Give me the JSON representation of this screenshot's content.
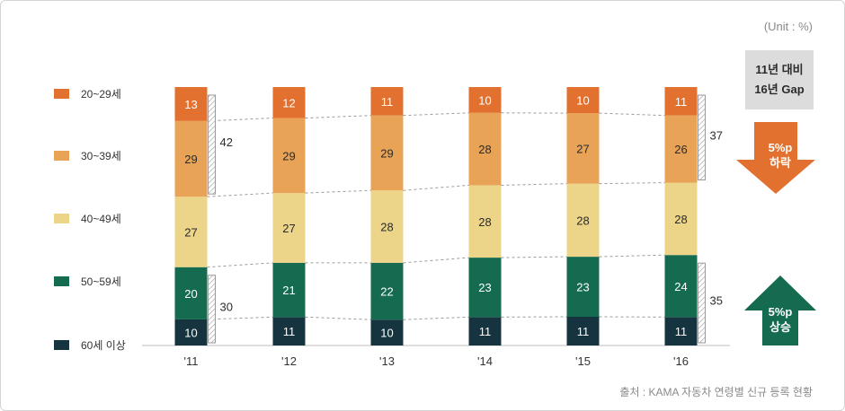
{
  "unit_label": "(Unit : %)",
  "source_label": "출처 : KAMA 자동차 연령별 신규 등록 현황",
  "gap_box": {
    "line1": "11년 대비",
    "line2": "16년 Gap"
  },
  "down_arrow": {
    "line1": "5%p",
    "line2": "하락",
    "color": "#e2712f"
  },
  "up_arrow": {
    "line1": "5%p",
    "line2": "상승",
    "color": "#146b50"
  },
  "chart_data": {
    "type": "bar",
    "stacked": true,
    "categories": [
      "'11",
      "'12",
      "'13",
      "'14",
      "'15",
      "'16"
    ],
    "ylim": [
      0,
      100
    ],
    "series": [
      {
        "name": "60세 이상",
        "color": "#16343f",
        "values": [
          10,
          11,
          10,
          11,
          11,
          11
        ]
      },
      {
        "name": "50~59세",
        "color": "#146b50",
        "values": [
          20,
          21,
          22,
          23,
          23,
          24
        ]
      },
      {
        "name": "40~49세",
        "color": "#ecd488",
        "values": [
          27,
          27,
          28,
          28,
          28,
          28
        ]
      },
      {
        "name": "30~39세",
        "color": "#e8a356",
        "values": [
          29,
          29,
          29,
          28,
          27,
          26
        ]
      },
      {
        "name": "20~29세",
        "color": "#e2712f",
        "values": [
          13,
          12,
          11,
          10,
          10,
          11
        ]
      }
    ],
    "brackets": [
      {
        "category": "'11",
        "from_series": 3,
        "to_series": 4,
        "total": "42"
      },
      {
        "category": "'11",
        "from_series": 0,
        "to_series": 1,
        "total": "30"
      },
      {
        "category": "'16",
        "from_series": 3,
        "to_series": 4,
        "total": "37"
      },
      {
        "category": "'16",
        "from_series": 0,
        "to_series": 1,
        "total": "35"
      }
    ]
  },
  "legend": [
    {
      "label": "20~29세",
      "color": "#e2712f"
    },
    {
      "label": "30~39세",
      "color": "#e8a356"
    },
    {
      "label": "40~49세",
      "color": "#ecd488"
    },
    {
      "label": "50~59세",
      "color": "#146b50"
    },
    {
      "label": "60세 이상",
      "color": "#16343f"
    }
  ]
}
